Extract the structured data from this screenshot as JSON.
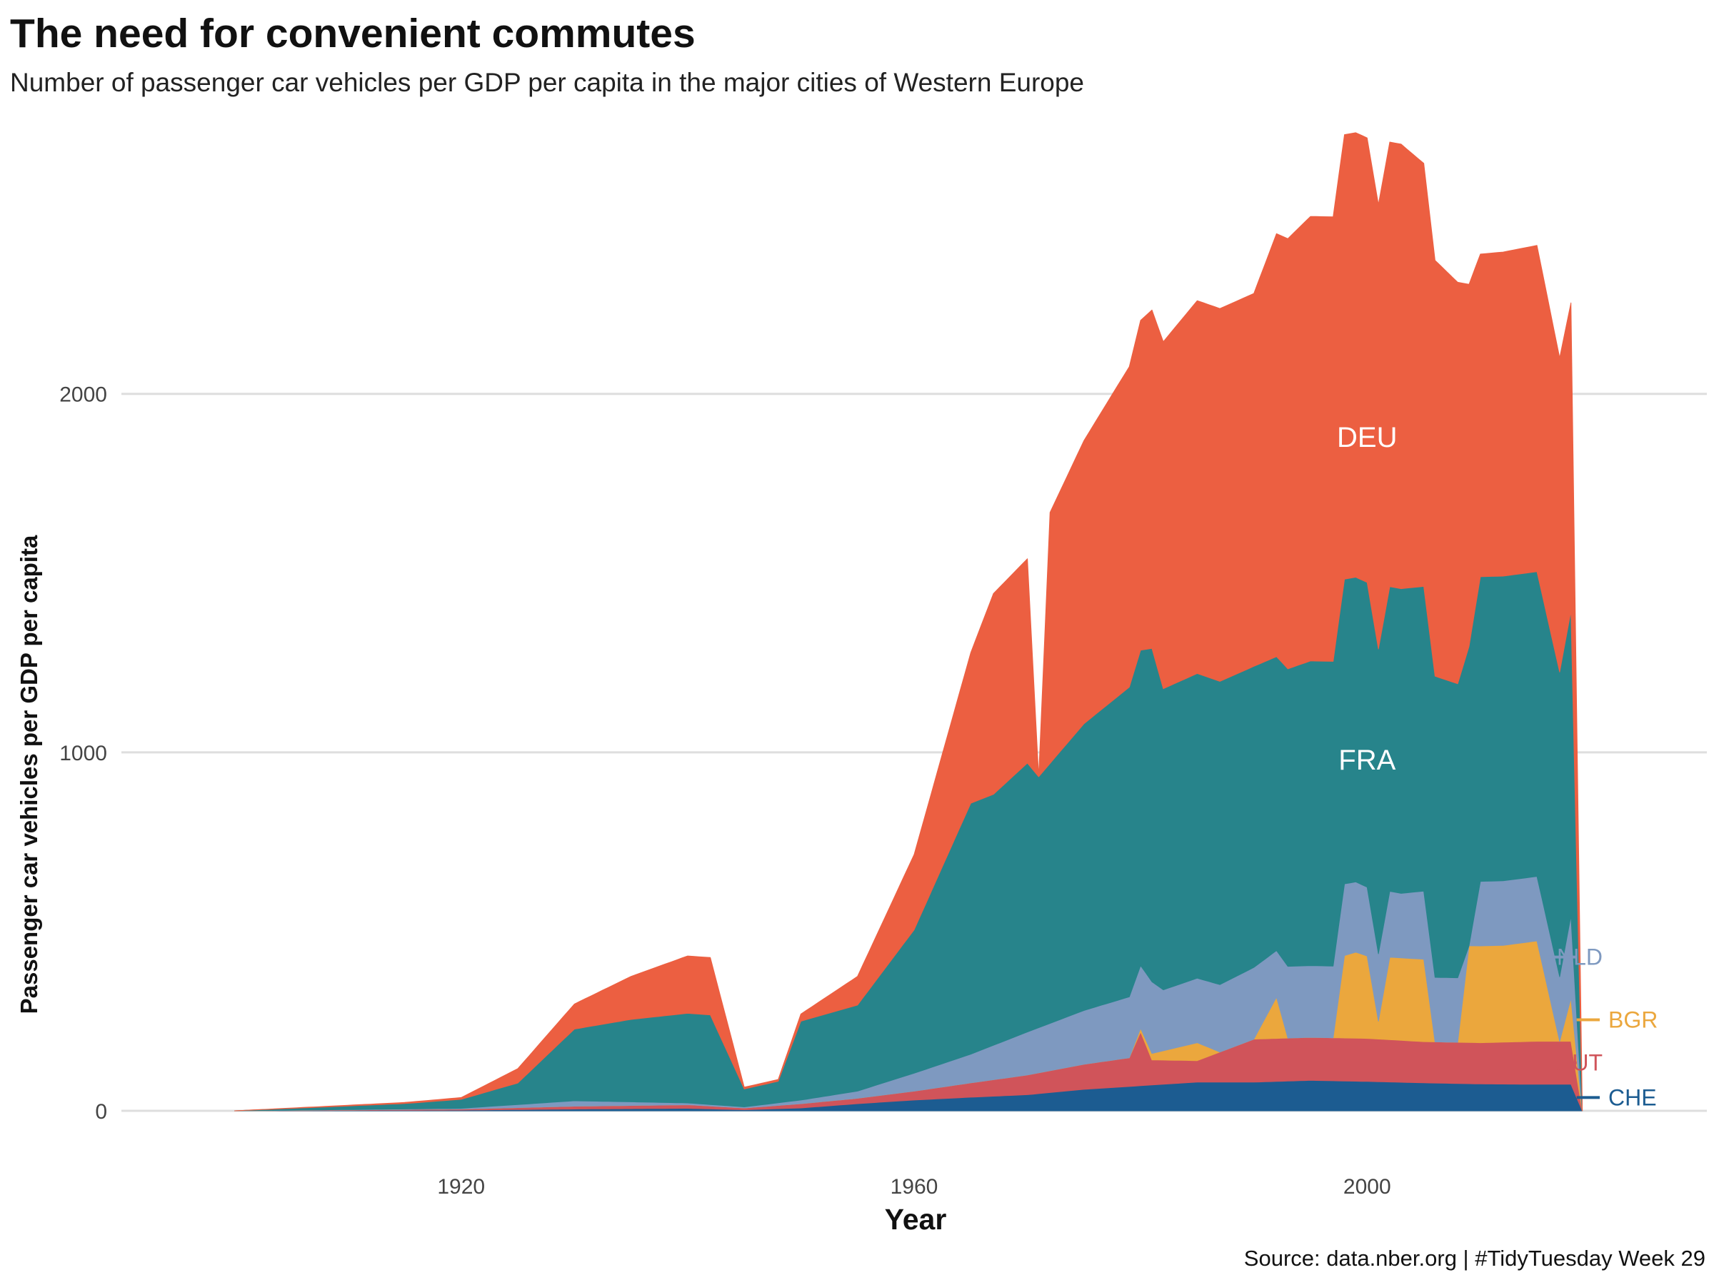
{
  "title": "The need for convenient commutes",
  "subtitle": "Number of passenger car vehicles per GDP per capita in the major cities of Western Europe",
  "caption": "Source: data.nber.org | #TidyTuesday Week 29",
  "chart_data": {
    "type": "area",
    "xlabel": "Year",
    "ylabel": "Passenger car vehicles per GDP per capita",
    "xlim": [
      1890,
      2030
    ],
    "ylim": [
      0,
      2800
    ],
    "xticks": [
      1920,
      1960,
      2000
    ],
    "yticks": [
      0,
      1000,
      2000
    ],
    "grid": "horizontal major",
    "legend": "direct labels",
    "stack_order": [
      "CHE",
      "AUT",
      "BGR",
      "NLD",
      "FRA",
      "DEU"
    ],
    "series": [
      {
        "name": "CHE",
        "color": "#1c5c91",
        "label_placement": "right-end",
        "points": [
          [
            1900,
            0
          ],
          [
            1920,
            2
          ],
          [
            1930,
            5
          ],
          [
            1940,
            7
          ],
          [
            1945,
            3
          ],
          [
            1950,
            8
          ],
          [
            1955,
            20
          ],
          [
            1960,
            30
          ],
          [
            1965,
            38
          ],
          [
            1970,
            45
          ],
          [
            1975,
            60
          ],
          [
            1980,
            70
          ],
          [
            1985,
            80
          ],
          [
            1990,
            80
          ],
          [
            1995,
            85
          ],
          [
            2000,
            82
          ],
          [
            2005,
            78
          ],
          [
            2010,
            75
          ],
          [
            2015,
            74
          ],
          [
            2018,
            74
          ],
          [
            2019,
            0
          ]
        ]
      },
      {
        "name": "AUT",
        "color": "#d0545a",
        "label_placement": "right-end",
        "points": [
          [
            1900,
            0
          ],
          [
            1920,
            3
          ],
          [
            1930,
            8
          ],
          [
            1940,
            10
          ],
          [
            1945,
            5
          ],
          [
            1950,
            12
          ],
          [
            1955,
            15
          ],
          [
            1960,
            25
          ],
          [
            1965,
            40
          ],
          [
            1970,
            55
          ],
          [
            1975,
            70
          ],
          [
            1979,
            80
          ],
          [
            1980,
            150
          ],
          [
            1981,
            70
          ],
          [
            1985,
            60
          ],
          [
            1990,
            120
          ],
          [
            1995,
            120
          ],
          [
            2000,
            120
          ],
          [
            2005,
            115
          ],
          [
            2010,
            115
          ],
          [
            2015,
            120
          ],
          [
            2018,
            120
          ],
          [
            2019,
            0
          ]
        ]
      },
      {
        "name": "BGR",
        "color": "#eba73d",
        "label_placement": "right-end",
        "points": [
          [
            1979,
            0
          ],
          [
            1980,
            10
          ],
          [
            1985,
            50
          ],
          [
            1987,
            0
          ],
          [
            1990,
            0
          ],
          [
            1992,
            115
          ],
          [
            1993,
            0
          ],
          [
            1997,
            0
          ],
          [
            1998,
            230
          ],
          [
            1999,
            240
          ],
          [
            2000,
            230
          ],
          [
            2001,
            50
          ],
          [
            2002,
            230
          ],
          [
            2005,
            230
          ],
          [
            2006,
            0
          ],
          [
            2008,
            0
          ],
          [
            2009,
            270
          ],
          [
            2012,
            270
          ],
          [
            2015,
            280
          ],
          [
            2017,
            0
          ],
          [
            2018,
            120
          ],
          [
            2019,
            0
          ]
        ]
      },
      {
        "name": "NLD",
        "color": "#7e99c0",
        "label_placement": "right-end",
        "points": [
          [
            1900,
            0
          ],
          [
            1920,
            2
          ],
          [
            1930,
            15
          ],
          [
            1940,
            5
          ],
          [
            1945,
            3
          ],
          [
            1950,
            10
          ],
          [
            1955,
            20
          ],
          [
            1960,
            50
          ],
          [
            1965,
            80
          ],
          [
            1970,
            120
          ],
          [
            1975,
            150
          ],
          [
            1980,
            175
          ],
          [
            1981,
            200
          ],
          [
            1982,
            170
          ],
          [
            1985,
            180
          ],
          [
            1990,
            200
          ],
          [
            1992,
            130
          ],
          [
            1993,
            200
          ],
          [
            1998,
            200
          ],
          [
            2003,
            180
          ],
          [
            2005,
            190
          ],
          [
            2006,
            180
          ],
          [
            2008,
            180
          ],
          [
            2009,
            0
          ],
          [
            2010,
            180
          ],
          [
            2017,
            180
          ],
          [
            2018,
            230
          ],
          [
            2019,
            0
          ]
        ]
      },
      {
        "name": "FRA",
        "color": "#27848b",
        "label_placement": "inside",
        "label_year": 2000,
        "label_value": 980,
        "points": [
          [
            1900,
            0
          ],
          [
            1910,
            10
          ],
          [
            1915,
            15
          ],
          [
            1920,
            25
          ],
          [
            1925,
            60
          ],
          [
            1930,
            200
          ],
          [
            1935,
            230
          ],
          [
            1940,
            250
          ],
          [
            1942,
            250
          ],
          [
            1945,
            50
          ],
          [
            1948,
            60
          ],
          [
            1950,
            220
          ],
          [
            1955,
            240
          ],
          [
            1960,
            400
          ],
          [
            1965,
            700
          ],
          [
            1967,
            700
          ],
          [
            1970,
            750
          ],
          [
            1971,
            700
          ],
          [
            1975,
            800
          ],
          [
            1980,
            880
          ],
          [
            1981,
            930
          ],
          [
            1982,
            840
          ],
          [
            1985,
            850
          ],
          [
            1990,
            840
          ],
          [
            1992,
            820
          ],
          [
            1995,
            850
          ],
          [
            1998,
            850
          ],
          [
            1999,
            850
          ],
          [
            2000,
            850
          ],
          [
            2001,
            850
          ],
          [
            2003,
            850
          ],
          [
            2005,
            850
          ],
          [
            2008,
            820
          ],
          [
            2010,
            850
          ],
          [
            2015,
            850
          ],
          [
            2018,
            850
          ],
          [
            2019,
            0
          ]
        ]
      },
      {
        "name": "DEU",
        "color": "#ec5f41",
        "label_placement": "inside",
        "label_year": 2000,
        "label_value": 1880,
        "points": [
          [
            1900,
            0
          ],
          [
            1910,
            2
          ],
          [
            1915,
            3
          ],
          [
            1920,
            5
          ],
          [
            1925,
            40
          ],
          [
            1930,
            70
          ],
          [
            1935,
            120
          ],
          [
            1940,
            160
          ],
          [
            1942,
            160
          ],
          [
            1945,
            5
          ],
          [
            1948,
            5
          ],
          [
            1950,
            20
          ],
          [
            1955,
            80
          ],
          [
            1960,
            210
          ],
          [
            1965,
            420
          ],
          [
            1967,
            560
          ],
          [
            1970,
            570
          ],
          [
            1971,
            0
          ],
          [
            1972,
            700
          ],
          [
            1975,
            790
          ],
          [
            1980,
            920
          ],
          [
            1985,
            1040
          ],
          [
            1990,
            1040
          ],
          [
            1992,
            1180
          ],
          [
            1995,
            1240
          ],
          [
            1998,
            1240
          ],
          [
            2000,
            1240
          ],
          [
            2003,
            1240
          ],
          [
            2005,
            1180
          ],
          [
            2008,
            1120
          ],
          [
            2010,
            900
          ],
          [
            2015,
            910
          ],
          [
            2018,
            860
          ],
          [
            2019,
            0
          ]
        ]
      }
    ]
  }
}
